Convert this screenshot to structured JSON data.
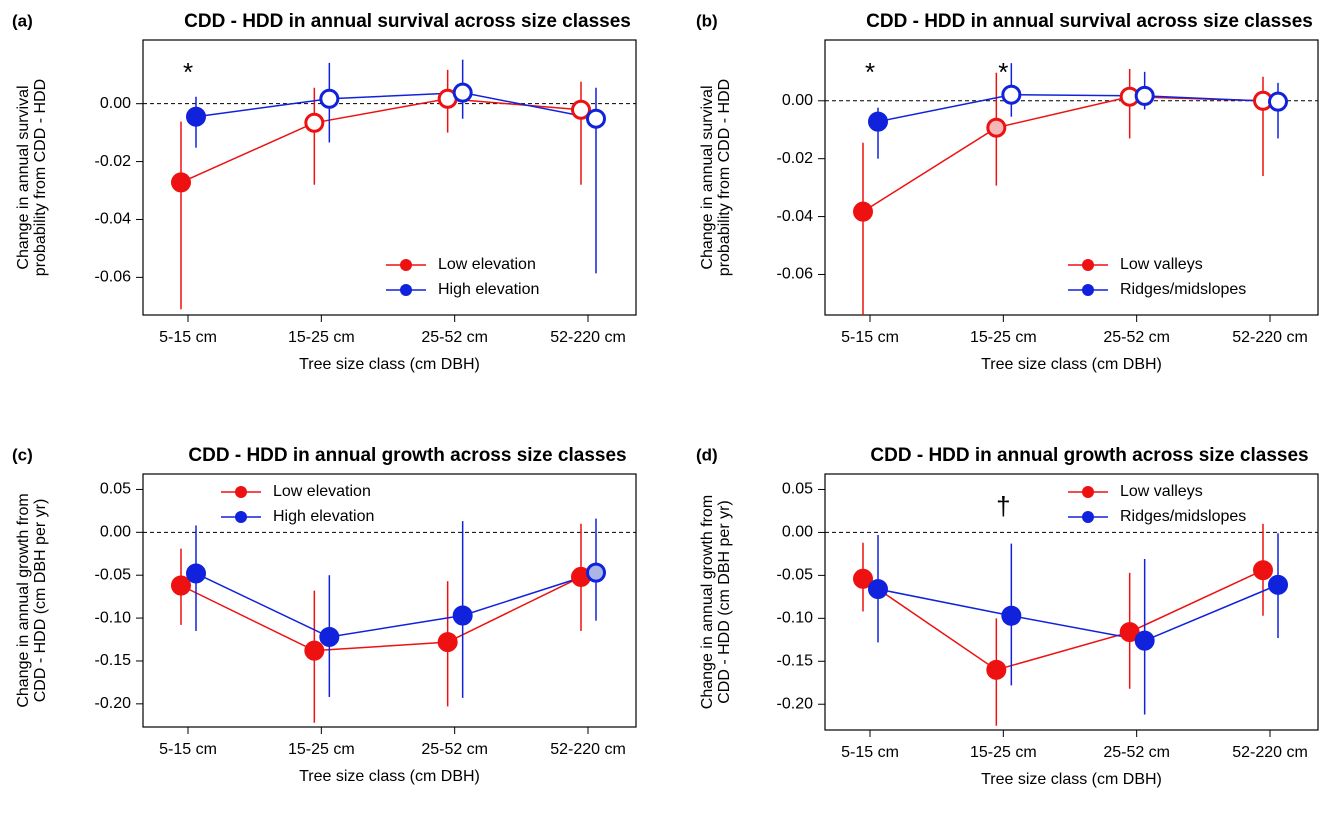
{
  "chart_data": [
    {
      "type": "line",
      "panel": "(a)",
      "title": "CDD - HDD in annual survival across size classes",
      "ylabel": [
        "Change in annual survival",
        "probability from CDD - HDD"
      ],
      "xlabel": "Tree size class (cm DBH)",
      "categories": [
        "5-15 cm",
        "15-25 cm",
        "25-52 cm",
        "52-220 cm"
      ],
      "ylim": [
        -0.073,
        0.022
      ],
      "yticks": [
        {
          "value": -0.06,
          "label": "-0.06"
        },
        {
          "value": -0.04,
          "label": "-0.04"
        },
        {
          "value": -0.02,
          "label": "-0.02"
        },
        {
          "value": 0,
          "label": "0.00"
        }
      ],
      "reference_line": 0,
      "legend": "bottom-right",
      "series": [
        {
          "name": "Low elevation",
          "color": "#ee1111",
          "values": [
            -0.0272,
            -0.0066,
            0.0017,
            -0.0021
          ],
          "lower": [
            -0.071,
            -0.028,
            -0.01,
            -0.028
          ],
          "upper": [
            -0.0062,
            0.0055,
            0.0117,
            0.0076
          ],
          "point_fills": [
            "#ee1111",
            "#ffffff",
            "#ffffff",
            "#ffffff"
          ]
        },
        {
          "name": "High elevation",
          "color": "#1122dd",
          "values": [
            -0.0045,
            0.0017,
            0.0038,
            -0.0052
          ],
          "lower": [
            -0.0152,
            -0.0134,
            -0.0052,
            -0.0586
          ],
          "upper": [
            0.0024,
            0.0141,
            0.0152,
            0.0055
          ],
          "point_fills": [
            "#1122dd",
            "#ffffff",
            "#ffffff",
            "#ffffff"
          ]
        }
      ],
      "annotations": [
        {
          "text": "*",
          "category": "5-15 cm"
        }
      ]
    },
    {
      "type": "line",
      "panel": "(b)",
      "title": "CDD - HDD in annual survival across size classes",
      "ylabel": [
        "Change in annual survival",
        "probability from CDD - HDD"
      ],
      "xlabel": "Tree size class (cm DBH)",
      "categories": [
        "5-15 cm",
        "15-25 cm",
        "25-52 cm",
        "52-220 cm"
      ],
      "ylim": [
        -0.074,
        0.021
      ],
      "yticks": [
        {
          "value": -0.06,
          "label": "-0.06"
        },
        {
          "value": -0.04,
          "label": "-0.04"
        },
        {
          "value": -0.02,
          "label": "-0.02"
        },
        {
          "value": 0,
          "label": "0.00"
        }
      ],
      "reference_line": 0,
      "legend": "bottom-right",
      "series": [
        {
          "name": "Low valleys",
          "color": "#ee1111",
          "values": [
            -0.0383,
            -0.0093,
            0.0014,
            0
          ],
          "lower": [
            -0.074,
            -0.0293,
            -0.013,
            -0.026
          ],
          "upper": [
            -0.0145,
            0.0097,
            0.011,
            0.0083
          ],
          "point_fills": [
            "#ee1111",
            "#f4b6b6",
            "#ffffff",
            "#ffffff"
          ]
        },
        {
          "name": "Ridges/midslopes",
          "color": "#1122dd",
          "values": [
            -0.0072,
            0.0021,
            0.0017,
            -0.0003
          ],
          "lower": [
            -0.02,
            -0.0055,
            -0.003,
            -0.013
          ],
          "upper": [
            -0.0024,
            0.013,
            0.01,
            0.0062
          ],
          "point_fills": [
            "#1122dd",
            "#ffffff",
            "#ffffff",
            "#ffffff"
          ]
        }
      ],
      "annotations": [
        {
          "text": "*",
          "category": "5-15 cm"
        },
        {
          "text": "*",
          "category": "15-25 cm"
        }
      ]
    },
    {
      "type": "line",
      "panel": "(c)",
      "title": "CDD - HDD in annual growth across size classes",
      "ylabel": [
        "Change in annual growth from",
        "CDD - HDD (cm DBH per yr)"
      ],
      "xlabel": "Tree size class (cm DBH)",
      "categories": [
        "5-15 cm",
        "15-25 cm",
        "25-52 cm",
        "52-220 cm"
      ],
      "ylim": [
        -0.227,
        0.068
      ],
      "yticks": [
        {
          "value": -0.2,
          "label": "-0.20"
        },
        {
          "value": -0.15,
          "label": "-0.15"
        },
        {
          "value": -0.1,
          "label": "-0.10"
        },
        {
          "value": -0.05,
          "label": "-0.05"
        },
        {
          "value": 0,
          "label": "0.00"
        },
        {
          "value": 0.05,
          "label": "0.05"
        }
      ],
      "reference_line": 0,
      "legend": "top-left",
      "series": [
        {
          "name": "Low elevation",
          "color": "#ee1111",
          "values": [
            -0.062,
            -0.138,
            -0.128,
            -0.052
          ],
          "lower": [
            -0.108,
            -0.222,
            -0.203,
            -0.115
          ],
          "upper": [
            -0.019,
            -0.068,
            -0.057,
            0.01
          ],
          "point_fills": [
            "#ee1111",
            "#ee1111",
            "#ee1111",
            "#ee1111"
          ]
        },
        {
          "name": "High elevation",
          "color": "#1122dd",
          "values": [
            -0.048,
            -0.122,
            -0.097,
            -0.047
          ],
          "lower": [
            -0.115,
            -0.192,
            -0.193,
            -0.103
          ],
          "upper": [
            0.008,
            -0.05,
            0.013,
            0.016
          ],
          "point_fills": [
            "#1122dd",
            "#1122dd",
            "#1122dd",
            "#a9b6e6"
          ]
        }
      ],
      "annotations": []
    },
    {
      "type": "line",
      "panel": "(d)",
      "title": "CDD - HDD in annual growth across size classes",
      "ylabel": [
        "Change in annual growth from",
        "CDD - HDD (cm DBH per yr)"
      ],
      "xlabel": "Tree size class (cm DBH)",
      "categories": [
        "5-15 cm",
        "15-25 cm",
        "25-52 cm",
        "52-220 cm"
      ],
      "ylim": [
        -0.23,
        0.068
      ],
      "yticks": [
        {
          "value": -0.2,
          "label": "-0.20"
        },
        {
          "value": -0.15,
          "label": "-0.15"
        },
        {
          "value": -0.1,
          "label": "-0.10"
        },
        {
          "value": -0.05,
          "label": "-0.05"
        },
        {
          "value": 0,
          "label": "0.00"
        },
        {
          "value": 0.05,
          "label": "0.05"
        }
      ],
      "reference_line": 0,
      "legend": "top-right",
      "series": [
        {
          "name": "Low valleys",
          "color": "#ee1111",
          "values": [
            -0.054,
            -0.16,
            -0.116,
            -0.044
          ],
          "lower": [
            -0.092,
            -0.225,
            -0.182,
            -0.097
          ],
          "upper": [
            -0.012,
            -0.1,
            -0.047,
            0.01
          ],
          "point_fills": [
            "#ee1111",
            "#ee1111",
            "#ee1111",
            "#ee1111"
          ]
        },
        {
          "name": "Ridges/midslopes",
          "color": "#1122dd",
          "values": [
            -0.066,
            -0.097,
            -0.126,
            -0.061
          ],
          "lower": [
            -0.128,
            -0.178,
            -0.212,
            -0.123
          ],
          "upper": [
            -0.003,
            -0.013,
            -0.031,
            -0.001
          ],
          "point_fills": [
            "#1122dd",
            "#1122dd",
            "#1122dd",
            "#1122dd"
          ]
        }
      ],
      "annotations": [
        {
          "text": "†",
          "category": "15-25 cm"
        }
      ]
    }
  ]
}
